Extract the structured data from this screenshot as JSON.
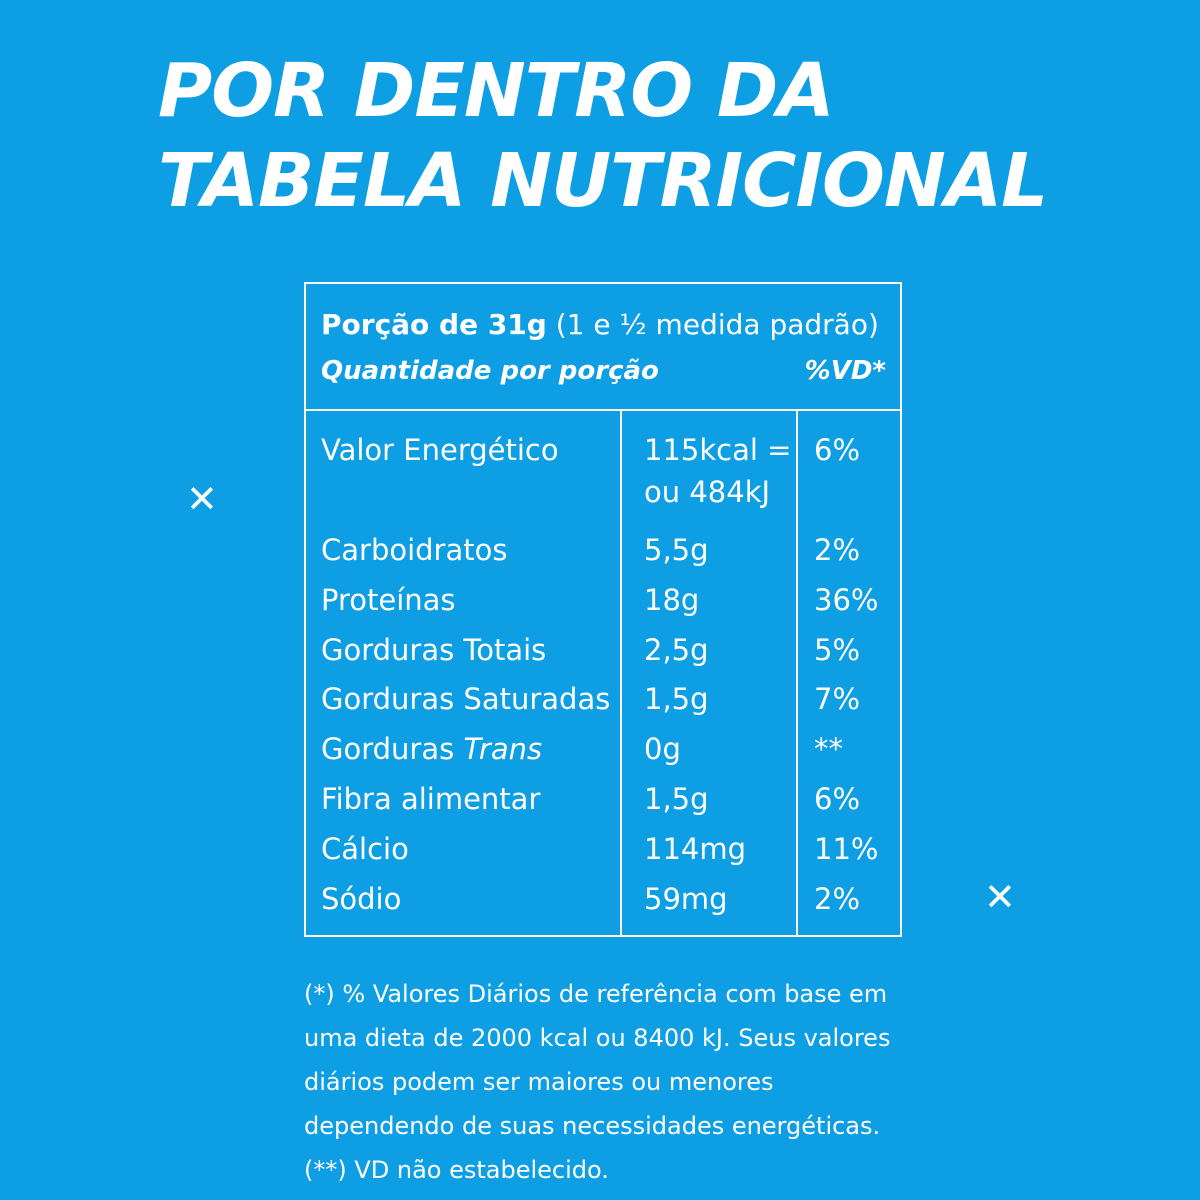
{
  "title": {
    "line1": "POR DENTRO DA",
    "line2": "TABELA NUTRICIONAL"
  },
  "table": {
    "portion_bold": "Porção de 31g",
    "portion_rest": "(1 e ½ medida padrão)",
    "quantity_label": "Quantidade por porção",
    "vd_label": "%VD*",
    "rows": [
      {
        "name": "Valor Energético",
        "amount": "115kcal =",
        "amount2": "ou 484kJ",
        "vd": "6%"
      },
      {
        "name": "Carboidratos",
        "amount": "5,5g",
        "vd": "2%"
      },
      {
        "name": "Proteínas",
        "amount": "18g",
        "vd": "36%"
      },
      {
        "name": "Gorduras Totais",
        "amount": "2,5g",
        "vd": "5%"
      },
      {
        "name": "Gorduras Saturadas",
        "amount": "1,5g",
        "vd": "7%"
      },
      {
        "name": "Gorduras",
        "name_italic": "Trans",
        "amount": "0g",
        "vd": "**"
      },
      {
        "name": "Fibra alimentar",
        "amount": "1,5g",
        "vd": "6%"
      },
      {
        "name": "Cálcio",
        "amount": "114mg",
        "vd": "11%"
      },
      {
        "name": "Sódio",
        "amount": "59mg",
        "vd": "2%"
      }
    ]
  },
  "footnote": "(*) % Valores Diários de referência com base em uma dieta de 2000 kcal ou 8400 kJ. Seus valores diários podem ser maiores ou menores dependendo de suas necessidades energéticas. (**) VD não estabelecido.",
  "decorations": {
    "cross_glyph": "✕",
    "icon": "cross-icon"
  },
  "colors": {
    "background": "#0e9ee4",
    "foreground": "#ffffff"
  }
}
